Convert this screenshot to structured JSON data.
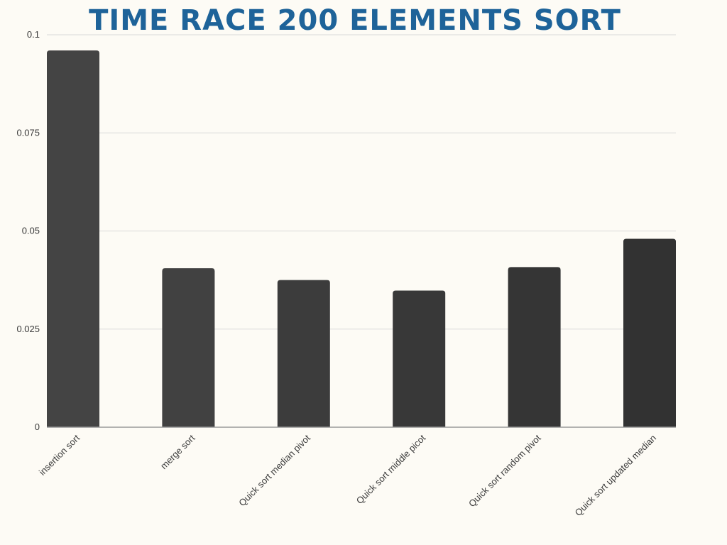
{
  "chart_data": {
    "type": "bar",
    "title": "TIME RACE 200 ELEMENTS SORT",
    "xlabel": "",
    "ylabel": "",
    "categories": [
      "insertion sort",
      "merge sort",
      "Quick sort median pivot",
      "Quick sort middle picot",
      "Quick sort random pivot",
      "Quick sort updated median"
    ],
    "values": [
      0.096,
      0.0405,
      0.0375,
      0.0348,
      0.0408,
      0.048
    ],
    "ylim": [
      0,
      0.1
    ],
    "yticks": [
      0,
      0.025,
      0.05,
      0.075,
      0.1
    ],
    "ytick_labels": [
      "0",
      "0.025",
      "0.05",
      "0.075",
      "0.1"
    ],
    "grid": true,
    "colors": {
      "bars": [
        "#444444",
        "#414141",
        "#3c3c3c",
        "#383838",
        "#353535",
        "#323232"
      ],
      "title": "#1e6399",
      "grid": "#d9d9d9",
      "background": "#fdfbf5"
    }
  }
}
